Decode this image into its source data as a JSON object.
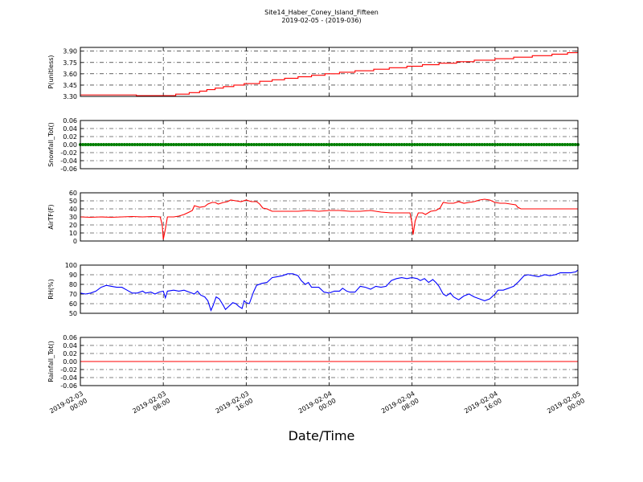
{
  "chart_data": {
    "title": "Site14_Haber_Coney_Island_Fifteen",
    "subtitle": "2019-02-05 - (2019-036)",
    "xlabel": "Date/Time",
    "x_range": [
      "2019-02-03 00:00",
      "2019-02-05 00:00"
    ],
    "x_ticks": [
      {
        "at_hours": 0,
        "lines": [
          "2019-02-03",
          "00:00"
        ]
      },
      {
        "at_hours": 8,
        "lines": [
          "2019-02-03",
          "08:00"
        ]
      },
      {
        "at_hours": 16,
        "lines": [
          "2019-02-03",
          "16:00"
        ]
      },
      {
        "at_hours": 24,
        "lines": [
          "2019-02-04",
          "00:00"
        ]
      },
      {
        "at_hours": 32,
        "lines": [
          "2019-02-04",
          "08:00"
        ]
      },
      {
        "at_hours": 40,
        "lines": [
          "2019-02-04",
          "16:00"
        ]
      },
      {
        "at_hours": 48,
        "lines": [
          "2019-02-05",
          "00:00"
        ]
      }
    ],
    "grid": true,
    "panels": [
      {
        "type": "line",
        "ylabel": "P(unitless)",
        "ylim": [
          3.3,
          3.95
        ],
        "yticks": [
          "3.30",
          "3.45",
          "3.60",
          "3.75",
          "3.90"
        ],
        "ytick_values": [
          3.3,
          3.45,
          3.6,
          3.75,
          3.9
        ],
        "color": "#ff0000",
        "step": true,
        "points": [
          [
            0,
            3.32
          ],
          [
            3,
            3.32
          ],
          [
            5.3,
            3.32
          ],
          [
            5.4,
            3.31
          ],
          [
            8,
            3.31
          ],
          [
            9,
            3.31
          ],
          [
            9.2,
            3.33
          ],
          [
            10.2,
            3.33
          ],
          [
            10.5,
            3.35
          ],
          [
            11.2,
            3.35
          ],
          [
            11.5,
            3.37
          ],
          [
            12,
            3.37
          ],
          [
            12.2,
            3.39
          ],
          [
            12.8,
            3.39
          ],
          [
            13,
            3.41
          ],
          [
            13.5,
            3.41
          ],
          [
            13.8,
            3.43
          ],
          [
            14.5,
            3.43
          ],
          [
            14.8,
            3.45
          ],
          [
            15.5,
            3.45
          ],
          [
            15.8,
            3.47
          ],
          [
            17,
            3.47
          ],
          [
            17.3,
            3.5
          ],
          [
            18.3,
            3.5
          ],
          [
            18.5,
            3.52
          ],
          [
            19.5,
            3.52
          ],
          [
            19.7,
            3.54
          ],
          [
            20.7,
            3.54
          ],
          [
            21,
            3.56
          ],
          [
            22,
            3.56
          ],
          [
            22.3,
            3.58
          ],
          [
            23.4,
            3.58
          ],
          [
            23.6,
            3.6
          ],
          [
            24.7,
            3.6
          ],
          [
            25,
            3.62
          ],
          [
            26.3,
            3.62
          ],
          [
            26.5,
            3.64
          ],
          [
            28,
            3.64
          ],
          [
            28.3,
            3.66
          ],
          [
            29.5,
            3.66
          ],
          [
            29.8,
            3.68
          ],
          [
            31.2,
            3.68
          ],
          [
            31.5,
            3.7
          ],
          [
            32.8,
            3.7
          ],
          [
            33,
            3.72
          ],
          [
            34.3,
            3.72
          ],
          [
            34.6,
            3.74
          ],
          [
            36,
            3.74
          ],
          [
            36.3,
            3.76
          ],
          [
            37.8,
            3.76
          ],
          [
            38,
            3.78
          ],
          [
            39.8,
            3.78
          ],
          [
            40,
            3.8
          ],
          [
            41.5,
            3.8
          ],
          [
            41.8,
            3.82
          ],
          [
            43.3,
            3.82
          ],
          [
            43.6,
            3.84
          ],
          [
            45.2,
            3.84
          ],
          [
            45.5,
            3.86
          ],
          [
            46.8,
            3.86
          ],
          [
            47,
            3.88
          ],
          [
            47.8,
            3.88
          ],
          [
            48,
            3.94
          ]
        ]
      },
      {
        "type": "line",
        "ylabel": "Snowfall_Tot()",
        "ylim": [
          -0.06,
          0.06
        ],
        "yticks": [
          "0.06",
          "0.04",
          "0.02",
          "0.00",
          "-0.02",
          "-0.04",
          "-0.06"
        ],
        "ytick_values": [
          0.06,
          0.04,
          0.02,
          0.0,
          -0.02,
          -0.04,
          -0.06
        ],
        "color": "#007f00",
        "markers": true,
        "constant": 0.0
      },
      {
        "type": "line",
        "ylabel": "AirTF(F)",
        "ylim": [
          0,
          60
        ],
        "yticks": [
          "0",
          "10",
          "20",
          "30",
          "40",
          "50",
          "60"
        ],
        "ytick_values": [
          0,
          10,
          20,
          30,
          40,
          50,
          60
        ],
        "color": "#ff0000",
        "points": [
          [
            0,
            30
          ],
          [
            1,
            29.5
          ],
          [
            2,
            30
          ],
          [
            3,
            29.5
          ],
          [
            4,
            30
          ],
          [
            5,
            30.5
          ],
          [
            6,
            30
          ],
          [
            7,
            30.5
          ],
          [
            7.7,
            30
          ],
          [
            7.9,
            20
          ],
          [
            8.0,
            2
          ],
          [
            8.2,
            15
          ],
          [
            8.4,
            30
          ],
          [
            9,
            30
          ],
          [
            9.5,
            31
          ],
          [
            10,
            33
          ],
          [
            10.5,
            36
          ],
          [
            10.8,
            38
          ],
          [
            11,
            44
          ],
          [
            11.5,
            42
          ],
          [
            12,
            43
          ],
          [
            12.3,
            46
          ],
          [
            12.7,
            48
          ],
          [
            13,
            48
          ],
          [
            13.3,
            46
          ],
          [
            13.8,
            48
          ],
          [
            14.2,
            49
          ],
          [
            14.5,
            51
          ],
          [
            15,
            50
          ],
          [
            15.5,
            49
          ],
          [
            16,
            51
          ],
          [
            16.5,
            49
          ],
          [
            17,
            49
          ],
          [
            17.3,
            46
          ],
          [
            17.6,
            41
          ],
          [
            18,
            40
          ],
          [
            18.5,
            37
          ],
          [
            19,
            37
          ],
          [
            20,
            37
          ],
          [
            21,
            37
          ],
          [
            22,
            38
          ],
          [
            23,
            37
          ],
          [
            24,
            38
          ],
          [
            25,
            38
          ],
          [
            26,
            37
          ],
          [
            27,
            37
          ],
          [
            28,
            38
          ],
          [
            29,
            36
          ],
          [
            30,
            35
          ],
          [
            31,
            35
          ],
          [
            31.8,
            35
          ],
          [
            32,
            22
          ],
          [
            32.1,
            8
          ],
          [
            32.3,
            25
          ],
          [
            32.6,
            35
          ],
          [
            33,
            35
          ],
          [
            33.3,
            33
          ],
          [
            33.8,
            37
          ],
          [
            34.3,
            38
          ],
          [
            34.7,
            41
          ],
          [
            35,
            48
          ],
          [
            35.5,
            47
          ],
          [
            36,
            47
          ],
          [
            36.5,
            49
          ],
          [
            37,
            47
          ],
          [
            37.5,
            48
          ],
          [
            38,
            49
          ],
          [
            38.5,
            51
          ],
          [
            39,
            52
          ],
          [
            39.5,
            51
          ],
          [
            40,
            48
          ],
          [
            40.5,
            47
          ],
          [
            41,
            47
          ],
          [
            41.5,
            46
          ],
          [
            42,
            45
          ],
          [
            42.2,
            42
          ],
          [
            42.5,
            40
          ],
          [
            43,
            40
          ],
          [
            44,
            40
          ],
          [
            45,
            40
          ],
          [
            46,
            40
          ],
          [
            47,
            40
          ],
          [
            48,
            40
          ]
        ]
      },
      {
        "type": "line",
        "ylabel": "RH(%)",
        "ylim": [
          50,
          100
        ],
        "yticks": [
          "50",
          "60",
          "70",
          "80",
          "90",
          "100"
        ],
        "ytick_values": [
          50,
          60,
          70,
          80,
          90,
          100
        ],
        "color": "#0000ff",
        "points": [
          [
            0,
            71
          ],
          [
            0.5,
            70
          ],
          [
            1,
            71
          ],
          [
            1.5,
            73
          ],
          [
            2,
            77
          ],
          [
            2.5,
            79
          ],
          [
            3,
            78
          ],
          [
            3.5,
            77
          ],
          [
            4,
            77
          ],
          [
            4.5,
            74
          ],
          [
            5,
            71
          ],
          [
            5.5,
            71
          ],
          [
            6,
            73
          ],
          [
            6.3,
            71
          ],
          [
            6.8,
            72
          ],
          [
            7.2,
            70
          ],
          [
            7.6,
            72
          ],
          [
            8,
            73
          ],
          [
            8.2,
            66
          ],
          [
            8.4,
            73
          ],
          [
            9,
            74
          ],
          [
            9.5,
            73
          ],
          [
            10,
            74
          ],
          [
            10.5,
            72
          ],
          [
            11,
            70
          ],
          [
            11.3,
            73
          ],
          [
            11.6,
            69
          ],
          [
            12,
            67
          ],
          [
            12.3,
            63
          ],
          [
            12.6,
            53
          ],
          [
            12.8,
            58
          ],
          [
            13.1,
            67
          ],
          [
            13.4,
            65
          ],
          [
            13.8,
            58
          ],
          [
            14,
            54
          ],
          [
            14.3,
            57
          ],
          [
            14.7,
            61
          ],
          [
            15,
            60
          ],
          [
            15.3,
            57
          ],
          [
            15.6,
            55
          ],
          [
            15.8,
            63
          ],
          [
            16,
            61
          ],
          [
            16.3,
            60
          ],
          [
            16.7,
            72
          ],
          [
            17,
            79
          ],
          [
            17.5,
            81
          ],
          [
            18,
            82
          ],
          [
            18.5,
            87
          ],
          [
            19,
            88
          ],
          [
            19.5,
            89
          ],
          [
            20,
            91
          ],
          [
            20.5,
            91
          ],
          [
            21,
            89
          ],
          [
            21.3,
            84
          ],
          [
            21.7,
            80
          ],
          [
            22,
            82
          ],
          [
            22.3,
            77
          ],
          [
            22.7,
            77
          ],
          [
            23,
            77
          ],
          [
            23.5,
            72
          ],
          [
            24,
            71
          ],
          [
            24.5,
            73
          ],
          [
            25,
            73
          ],
          [
            25.3,
            76
          ],
          [
            25.7,
            73
          ],
          [
            26,
            72
          ],
          [
            26.5,
            72
          ],
          [
            27,
            78
          ],
          [
            27.5,
            77
          ],
          [
            28,
            75
          ],
          [
            28.5,
            78
          ],
          [
            29,
            77
          ],
          [
            29.5,
            78
          ],
          [
            30,
            84
          ],
          [
            30.5,
            86
          ],
          [
            31,
            87
          ],
          [
            31.5,
            86
          ],
          [
            32,
            87
          ],
          [
            32.5,
            86
          ],
          [
            32.8,
            84
          ],
          [
            33.2,
            86
          ],
          [
            33.6,
            82
          ],
          [
            34,
            85
          ],
          [
            34.3,
            82
          ],
          [
            34.6,
            78
          ],
          [
            35,
            70
          ],
          [
            35.3,
            68
          ],
          [
            35.7,
            71
          ],
          [
            36,
            67
          ],
          [
            36.5,
            64
          ],
          [
            37,
            68
          ],
          [
            37.5,
            70
          ],
          [
            38,
            67
          ],
          [
            38.5,
            65
          ],
          [
            39,
            63
          ],
          [
            39.5,
            65
          ],
          [
            40,
            70
          ],
          [
            40.3,
            74
          ],
          [
            40.8,
            74
          ],
          [
            41.3,
            76
          ],
          [
            41.8,
            78
          ],
          [
            42.3,
            83
          ],
          [
            42.8,
            89
          ],
          [
            43.2,
            90
          ],
          [
            43.7,
            89
          ],
          [
            44.2,
            88
          ],
          [
            44.8,
            90
          ],
          [
            45.3,
            89
          ],
          [
            45.8,
            90
          ],
          [
            46.3,
            92
          ],
          [
            46.8,
            92
          ],
          [
            47.3,
            92
          ],
          [
            47.8,
            93
          ],
          [
            48,
            95
          ]
        ]
      },
      {
        "type": "line",
        "ylabel": "Rainfall_Tot()",
        "ylim": [
          -0.06,
          0.06
        ],
        "yticks": [
          "0.06",
          "0.04",
          "0.02",
          "0.00",
          "-0.02",
          "-0.04",
          "-0.06"
        ],
        "ytick_values": [
          0.06,
          0.04,
          0.02,
          0.0,
          -0.02,
          -0.04,
          -0.06
        ],
        "color": "#ff0000",
        "constant": 0.0
      }
    ]
  }
}
